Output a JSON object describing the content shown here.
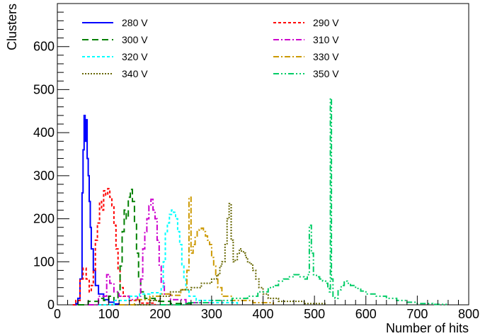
{
  "chart_data": {
    "type": "line",
    "xlabel": "Number of hits",
    "ylabel": "Clusters",
    "xlim": [
      0,
      800
    ],
    "ylim": [
      0,
      700
    ],
    "x_major_ticks": [
      0,
      100,
      200,
      300,
      400,
      500,
      600,
      700,
      800
    ],
    "y_major_ticks": [
      0,
      100,
      200,
      300,
      400,
      500,
      600
    ],
    "grid": false,
    "legend_position": "top",
    "series": [
      {
        "name": "280 V",
        "color": "#0000ff",
        "dash": "solid",
        "points": [
          [
            30,
            0
          ],
          [
            36,
            3
          ],
          [
            40,
            15
          ],
          [
            44,
            60
          ],
          [
            48,
            260
          ],
          [
            50,
            360
          ],
          [
            52,
            440
          ],
          [
            54,
            380
          ],
          [
            56,
            430
          ],
          [
            58,
            340
          ],
          [
            60,
            300
          ],
          [
            62,
            240
          ],
          [
            64,
            180
          ],
          [
            66,
            130
          ],
          [
            70,
            80
          ],
          [
            74,
            45
          ],
          [
            80,
            25
          ],
          [
            90,
            12
          ],
          [
            100,
            6
          ],
          [
            110,
            2
          ],
          [
            120,
            0
          ]
        ]
      },
      {
        "name": "290 V",
        "color": "#ff0000",
        "dash": "short",
        "points": [
          [
            30,
            0
          ],
          [
            36,
            10
          ],
          [
            44,
            60
          ],
          [
            50,
            85
          ],
          [
            56,
            60
          ],
          [
            62,
            30
          ],
          [
            66,
            45
          ],
          [
            70,
            80
          ],
          [
            74,
            150
          ],
          [
            78,
            190
          ],
          [
            82,
            240
          ],
          [
            86,
            220
          ],
          [
            90,
            265
          ],
          [
            94,
            255
          ],
          [
            98,
            270
          ],
          [
            102,
            250
          ],
          [
            106,
            230
          ],
          [
            110,
            185
          ],
          [
            114,
            130
          ],
          [
            118,
            80
          ],
          [
            122,
            40
          ],
          [
            128,
            20
          ],
          [
            140,
            10
          ],
          [
            160,
            4
          ],
          [
            190,
            0
          ]
        ]
      },
      {
        "name": "300 V",
        "color": "#008000",
        "dash": "long",
        "points": [
          [
            40,
            0
          ],
          [
            60,
            8
          ],
          [
            80,
            15
          ],
          [
            90,
            10
          ],
          [
            100,
            20
          ],
          [
            110,
            10
          ],
          [
            118,
            30
          ],
          [
            122,
            90
          ],
          [
            126,
            170
          ],
          [
            130,
            220
          ],
          [
            134,
            200
          ],
          [
            138,
            250
          ],
          [
            142,
            268
          ],
          [
            146,
            240
          ],
          [
            150,
            190
          ],
          [
            154,
            120
          ],
          [
            158,
            60
          ],
          [
            162,
            30
          ],
          [
            170,
            15
          ],
          [
            190,
            8
          ],
          [
            220,
            3
          ],
          [
            260,
            0
          ]
        ]
      },
      {
        "name": "310 V",
        "color": "#cc00cc",
        "dash": "dashdot",
        "points": [
          [
            60,
            0
          ],
          [
            80,
            20
          ],
          [
            96,
            70
          ],
          [
            102,
            50
          ],
          [
            110,
            30
          ],
          [
            120,
            20
          ],
          [
            140,
            12
          ],
          [
            156,
            20
          ],
          [
            162,
            60
          ],
          [
            166,
            130
          ],
          [
            170,
            170
          ],
          [
            174,
            200
          ],
          [
            178,
            230
          ],
          [
            182,
            245
          ],
          [
            186,
            220
          ],
          [
            190,
            200
          ],
          [
            194,
            150
          ],
          [
            198,
            90
          ],
          [
            202,
            50
          ],
          [
            208,
            25
          ],
          [
            220,
            12
          ],
          [
            250,
            5
          ],
          [
            300,
            0
          ]
        ]
      },
      {
        "name": "320 V",
        "color": "#00ffff",
        "dash": "short",
        "points": [
          [
            80,
            0
          ],
          [
            110,
            10
          ],
          [
            140,
            20
          ],
          [
            160,
            25
          ],
          [
            180,
            28
          ],
          [
            196,
            25
          ],
          [
            202,
            40
          ],
          [
            206,
            100
          ],
          [
            210,
            170
          ],
          [
            214,
            190
          ],
          [
            218,
            210
          ],
          [
            222,
            220
          ],
          [
            226,
            215
          ],
          [
            230,
            200
          ],
          [
            234,
            170
          ],
          [
            238,
            140
          ],
          [
            242,
            90
          ],
          [
            246,
            60
          ],
          [
            250,
            35
          ],
          [
            256,
            20
          ],
          [
            270,
            10
          ],
          [
            300,
            5
          ],
          [
            350,
            0
          ]
        ]
      },
      {
        "name": "330 V",
        "color": "#cc9900",
        "dash": "dashdot",
        "points": [
          [
            120,
            0
          ],
          [
            150,
            12
          ],
          [
            180,
            20
          ],
          [
            200,
            25
          ],
          [
            220,
            22
          ],
          [
            240,
            35
          ],
          [
            252,
            80
          ],
          [
            256,
            250
          ],
          [
            260,
            120
          ],
          [
            264,
            140
          ],
          [
            268,
            160
          ],
          [
            272,
            170
          ],
          [
            276,
            175
          ],
          [
            280,
            178
          ],
          [
            284,
            170
          ],
          [
            288,
            160
          ],
          [
            292,
            150
          ],
          [
            296,
            140
          ],
          [
            300,
            110
          ],
          [
            304,
            90
          ],
          [
            308,
            70
          ],
          [
            312,
            40
          ],
          [
            320,
            20
          ],
          [
            340,
            10
          ],
          [
            380,
            5
          ],
          [
            420,
            0
          ]
        ]
      },
      {
        "name": "340 V",
        "color": "#666600",
        "dash": "dotted",
        "points": [
          [
            150,
            0
          ],
          [
            180,
            10
          ],
          [
            200,
            20
          ],
          [
            220,
            30
          ],
          [
            240,
            35
          ],
          [
            260,
            40
          ],
          [
            280,
            50
          ],
          [
            300,
            60
          ],
          [
            310,
            70
          ],
          [
            316,
            90
          ],
          [
            320,
            100
          ],
          [
            326,
            140
          ],
          [
            330,
            200
          ],
          [
            334,
            235
          ],
          [
            338,
            150
          ],
          [
            342,
            100
          ],
          [
            346,
            105
          ],
          [
            350,
            120
          ],
          [
            354,
            130
          ],
          [
            358,
            125
          ],
          [
            362,
            120
          ],
          [
            366,
            110
          ],
          [
            370,
            100
          ],
          [
            374,
            95
          ],
          [
            380,
            80
          ],
          [
            386,
            60
          ],
          [
            392,
            40
          ],
          [
            400,
            25
          ],
          [
            410,
            15
          ],
          [
            430,
            8
          ],
          [
            480,
            3
          ],
          [
            520,
            0
          ]
        ]
      },
      {
        "name": "350 V",
        "color": "#00cc66",
        "dash": "dashdotdot",
        "points": [
          [
            200,
            0
          ],
          [
            250,
            5
          ],
          [
            300,
            10
          ],
          [
            340,
            15
          ],
          [
            370,
            20
          ],
          [
            390,
            30
          ],
          [
            410,
            40
          ],
          [
            420,
            45
          ],
          [
            430,
            55
          ],
          [
            440,
            60
          ],
          [
            450,
            65
          ],
          [
            460,
            70
          ],
          [
            470,
            65
          ],
          [
            480,
            60
          ],
          [
            486,
            70
          ],
          [
            490,
            185
          ],
          [
            494,
            120
          ],
          [
            498,
            70
          ],
          [
            504,
            65
          ],
          [
            510,
            60
          ],
          [
            516,
            55
          ],
          [
            522,
            50
          ],
          [
            526,
            40
          ],
          [
            529,
            30
          ],
          [
            531,
            480
          ],
          [
            533,
            60
          ],
          [
            536,
            20
          ],
          [
            540,
            15
          ],
          [
            546,
            35
          ],
          [
            552,
            45
          ],
          [
            558,
            55
          ],
          [
            564,
            50
          ],
          [
            570,
            45
          ],
          [
            580,
            38
          ],
          [
            590,
            32
          ],
          [
            600,
            25
          ],
          [
            620,
            20
          ],
          [
            640,
            15
          ],
          [
            660,
            10
          ],
          [
            680,
            6
          ],
          [
            700,
            3
          ],
          [
            730,
            1
          ],
          [
            760,
            0
          ]
        ]
      }
    ]
  }
}
